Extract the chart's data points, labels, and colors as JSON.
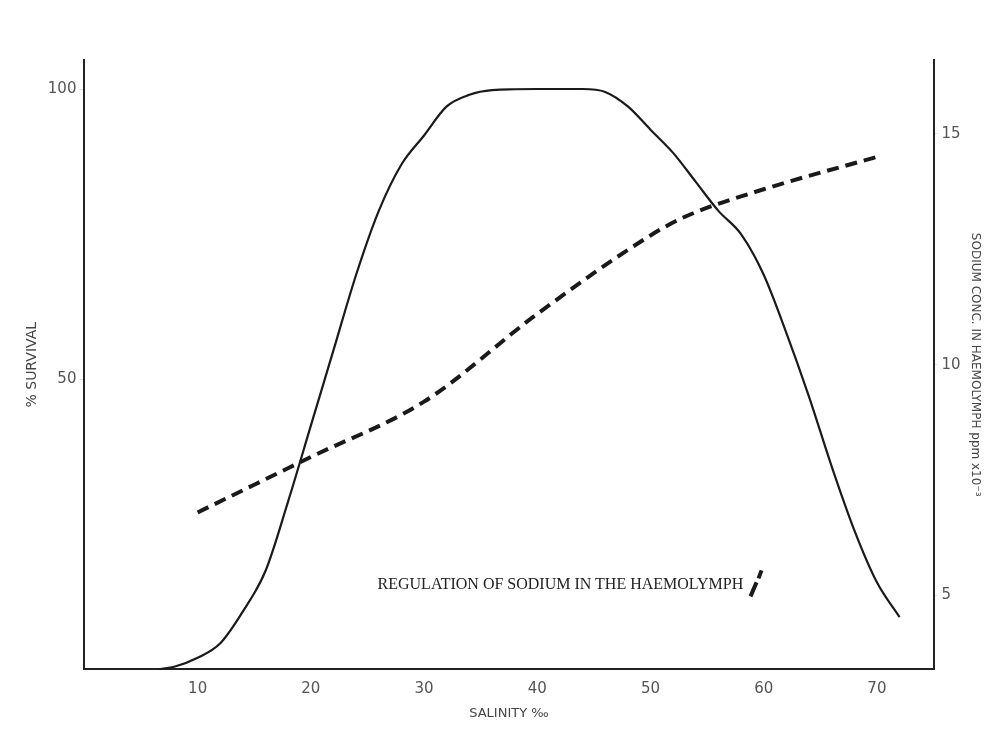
{
  "chart_data": {
    "type": "line",
    "xlabel": "SALINITY ‰",
    "ylabel": "% SURVIVAL",
    "y2label": "SODIUM CONC. IN HAEMOLYMPH ppm x10⁻³",
    "xlim": [
      0,
      75
    ],
    "xticks": [
      10,
      20,
      30,
      40,
      50,
      60,
      70
    ],
    "ylim": [
      0,
      105
    ],
    "yticks": [
      50,
      100
    ],
    "y2lim": [
      3.4,
      16.6
    ],
    "y2ticks": [
      5,
      10,
      15
    ],
    "grid": false,
    "legend": "bottom right",
    "marker": "none",
    "series": [
      {
        "color": "#1a1a1a",
        "line_style": "solid",
        "x": [
          6.5,
          8,
          10,
          12,
          14,
          16,
          18,
          20,
          22,
          24,
          26,
          28,
          30,
          32,
          34,
          36,
          40,
          44,
          46,
          48,
          50,
          52,
          54,
          56,
          58,
          60,
          62,
          64,
          66,
          68,
          70,
          72
        ],
        "values": [
          0,
          0.5,
          2,
          4.5,
          10,
          17,
          29,
          42,
          55,
          68,
          79,
          87,
          92,
          97,
          99,
          99.8,
          100,
          100,
          99.5,
          97,
          93,
          89,
          84,
          79,
          75,
          68,
          58,
          47,
          35,
          24,
          15,
          9
        ]
      },
      {
        "name": "REGULATION OF SODIUM IN THE HAEMOLYMPH",
        "color": "#1a1a1a",
        "line_style": "dashed",
        "axis": "y2",
        "x": [
          10,
          20,
          30,
          40,
          50,
          53,
          60,
          70
        ],
        "values": [
          6.8,
          8.0,
          9.2,
          11.1,
          12.8,
          13.2,
          13.8,
          14.5
        ]
      }
    ]
  }
}
